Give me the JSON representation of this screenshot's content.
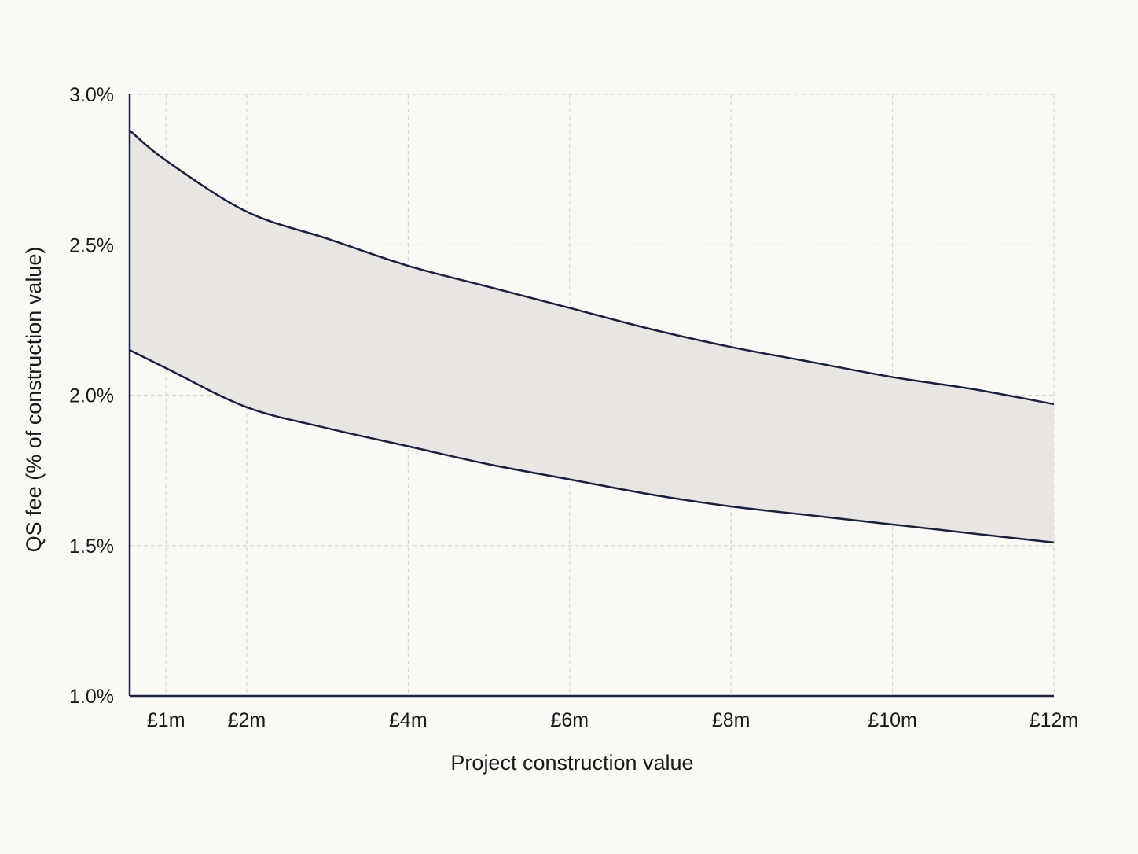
{
  "chart_data": {
    "type": "area",
    "title": "",
    "xlabel": "Project construction value",
    "ylabel": "QS fee (% of construction value)",
    "xlim": [
      0.55,
      12
    ],
    "ylim": [
      1.0,
      3.0
    ],
    "x_ticks": [
      {
        "value": 1,
        "label": "£1m"
      },
      {
        "value": 2,
        "label": "£2m"
      },
      {
        "value": 4,
        "label": "£4m"
      },
      {
        "value": 6,
        "label": "£6m"
      },
      {
        "value": 8,
        "label": "£8m"
      },
      {
        "value": 10,
        "label": "£10m"
      },
      {
        "value": 12,
        "label": "£12m"
      }
    ],
    "y_ticks": [
      {
        "value": 1.0,
        "label": "1.0%"
      },
      {
        "value": 1.5,
        "label": "1.5%"
      },
      {
        "value": 2.0,
        "label": "2.0%"
      },
      {
        "value": 2.5,
        "label": "2.5%"
      },
      {
        "value": 3.0,
        "label": "3.0%"
      }
    ],
    "grid": true,
    "series": [
      {
        "role": "upper",
        "x": [
          0.55,
          1,
          2,
          3,
          4,
          5,
          6,
          7,
          8,
          9,
          10,
          11,
          12
        ],
        "values": [
          2.88,
          2.78,
          2.61,
          2.52,
          2.43,
          2.36,
          2.29,
          2.22,
          2.16,
          2.11,
          2.06,
          2.02,
          1.97
        ]
      },
      {
        "role": "lower",
        "x": [
          0.55,
          1,
          2,
          3,
          4,
          5,
          6,
          7,
          8,
          9,
          10,
          11,
          12
        ],
        "values": [
          2.15,
          2.09,
          1.96,
          1.89,
          1.83,
          1.77,
          1.72,
          1.67,
          1.63,
          1.6,
          1.57,
          1.54,
          1.51
        ]
      }
    ],
    "colors": {
      "line": "#1a2040",
      "band_fill": "#e8e5e3",
      "axis": "#1a2040",
      "grid": "#cfcfcf"
    }
  }
}
